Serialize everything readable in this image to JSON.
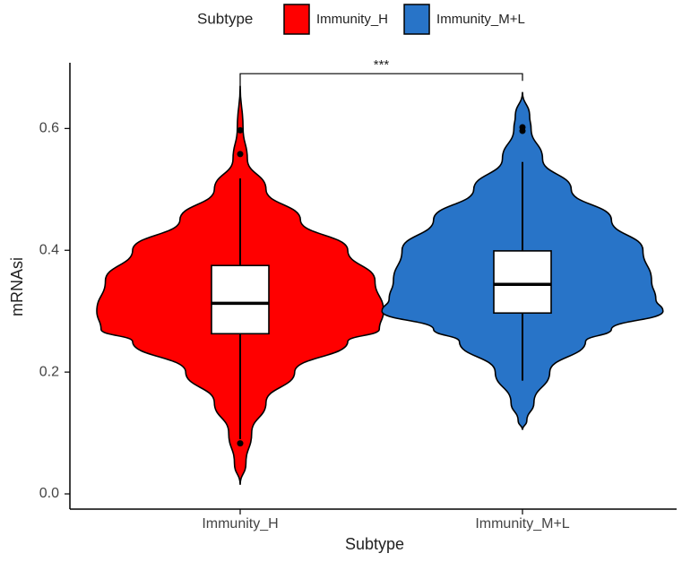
{
  "chart_data": {
    "type": "violin",
    "legend_title": "Subtype",
    "legend_position": "top",
    "x_label": "Subtype",
    "y_label": "mRNAsi",
    "categories": [
      "Immunity_H",
      "Immunity_M+L"
    ],
    "series": [
      {
        "name": "Immunity_H",
        "color": "#ff0000",
        "y_density": [
          0.67,
          0.6,
          0.55,
          0.5,
          0.45,
          0.4,
          0.35,
          0.3,
          0.27,
          0.25,
          0.2,
          0.15,
          0.1,
          0.05,
          0.015
        ],
        "density": [
          0,
          0.02,
          0.05,
          0.18,
          0.42,
          0.75,
          0.94,
          1,
          0.97,
          0.75,
          0.38,
          0.18,
          0.08,
          0.04,
          0
        ],
        "box": {
          "whisker_low": 0.09,
          "q1": 0.263,
          "median": 0.313,
          "q3": 0.375,
          "whisker_high": 0.518
        },
        "outliers": [
          0.597,
          0.558,
          0.083
        ]
      },
      {
        "name": "Immunity_M+L",
        "color": "#2874c8",
        "y_density": [
          0.66,
          0.62,
          0.6,
          0.55,
          0.5,
          0.45,
          0.4,
          0.35,
          0.32,
          0.3,
          0.27,
          0.25,
          0.2,
          0.15,
          0.12,
          0.105
        ],
        "density": [
          0,
          0.05,
          0.06,
          0.14,
          0.34,
          0.62,
          0.84,
          0.9,
          0.93,
          0.98,
          0.62,
          0.44,
          0.19,
          0.08,
          0.03,
          0
        ],
        "box": {
          "whisker_low": 0.186,
          "q1": 0.297,
          "median": 0.344,
          "q3": 0.399,
          "whisker_high": 0.545
        },
        "outliers": [
          0.602,
          0.596
        ]
      }
    ],
    "ylim": [
      -0.025,
      0.705
    ],
    "yticks": [
      {
        "value": 0,
        "label": "0.0"
      },
      0.2,
      0.4,
      0.6
    ],
    "significance": {
      "label": "***",
      "y": 0.69
    }
  }
}
